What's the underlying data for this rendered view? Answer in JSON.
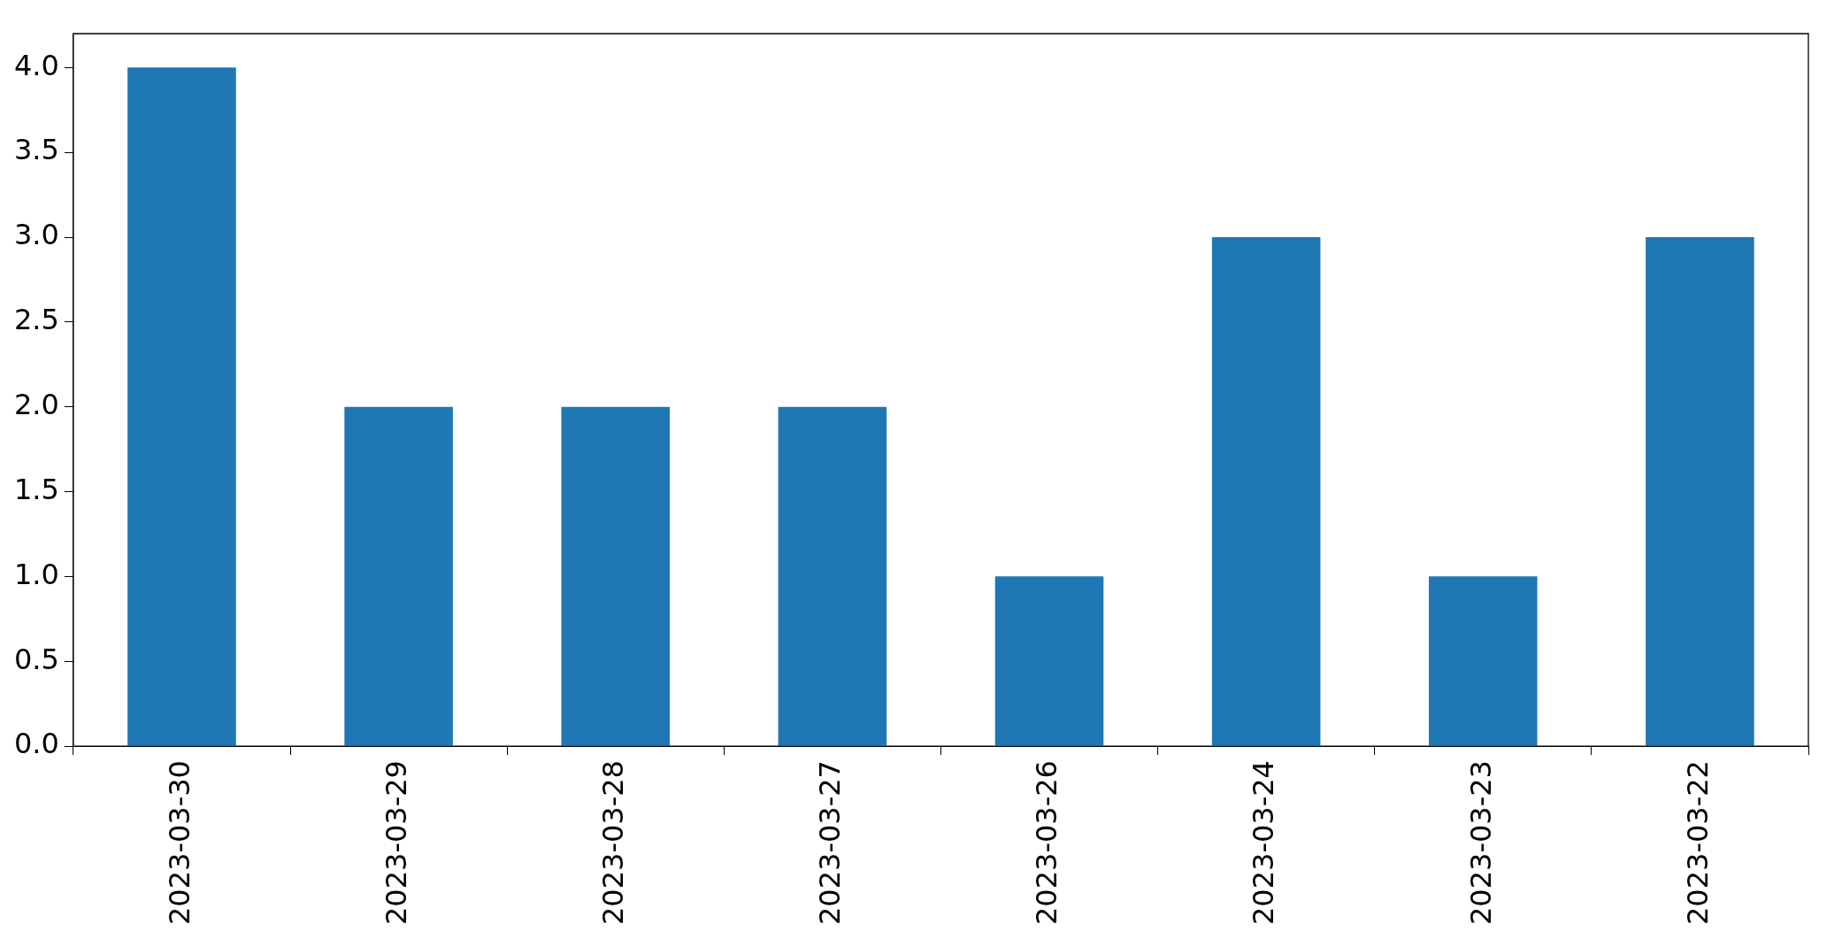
{
  "chart_data": {
    "type": "bar",
    "categories": [
      "2023-03-30",
      "2023-03-29",
      "2023-03-28",
      "2023-03-27",
      "2023-03-26",
      "2023-03-24",
      "2023-03-23",
      "2023-03-22"
    ],
    "values": [
      4,
      2,
      2,
      2,
      1,
      3,
      1,
      3
    ],
    "color": "#1f77b4",
    "ylim": [
      0,
      4.2
    ],
    "yticks": [
      {
        "value": 0,
        "label": "0.0"
      },
      {
        "value": 0.5,
        "label": "0.5"
      },
      {
        "value": 1,
        "label": "1.0"
      },
      {
        "value": 1.5,
        "label": "1.5"
      },
      {
        "value": 2,
        "label": "2.0"
      },
      {
        "value": 2.5,
        "label": "2.5"
      },
      {
        "value": 3,
        "label": "3.0"
      },
      {
        "value": 3.5,
        "label": "3.5"
      },
      {
        "value": 4,
        "label": "4.0"
      }
    ],
    "grid": false,
    "legend": false
  }
}
